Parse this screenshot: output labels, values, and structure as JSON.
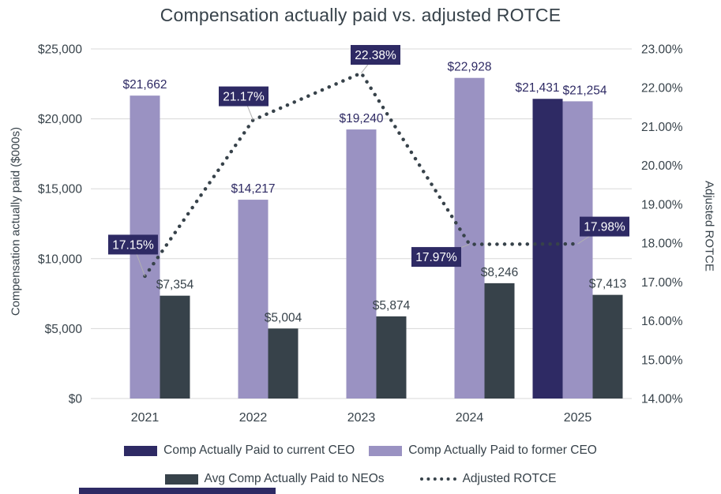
{
  "title": "Compensation actually paid vs. adjusted ROTCE",
  "colors": {
    "current_ceo": "#2e2a64",
    "former_ceo": "#9a92c2",
    "neos": "#37424a",
    "rotce_line": "#37424a",
    "label_box_bg": "#2e2a64",
    "label_box_text": "#ffffff",
    "grid": "#d8d8d8",
    "leader_line": "#b0b0b0",
    "axis_text": "#37424a",
    "title_text": "#37424a",
    "bottom_strip": "#2e2a64"
  },
  "chart_data": {
    "type": "bar",
    "subtype": "clustered bars with secondary-axis dotted line",
    "title": "Compensation actually paid vs. adjusted ROTCE",
    "categories": [
      "2021",
      "2022",
      "2023",
      "2024",
      "2025"
    ],
    "series": [
      {
        "name": "Comp Actually Paid to current CEO",
        "type": "bar",
        "axis": "left",
        "color_key": "current_ceo",
        "values": [
          null,
          null,
          null,
          null,
          21431
        ],
        "labels": [
          "",
          "",
          "",
          "",
          "$21,431"
        ]
      },
      {
        "name": "Comp Actually Paid to former CEO",
        "type": "bar",
        "axis": "left",
        "color_key": "former_ceo",
        "values": [
          21662,
          14217,
          19240,
          22928,
          21254
        ],
        "labels": [
          "$21,662",
          "$14,217",
          "$19,240",
          "$22,928",
          "$21,254"
        ]
      },
      {
        "name": "Avg Comp Actually Paid to NEOs",
        "type": "bar",
        "axis": "left",
        "color_key": "neos",
        "values": [
          7354,
          5004,
          5874,
          8246,
          7413
        ],
        "labels": [
          "$7,354",
          "$5,004",
          "$5,874",
          "$8,246",
          "$7,413"
        ]
      },
      {
        "name": "Adjusted ROTCE",
        "type": "line",
        "style": "dotted",
        "axis": "right",
        "color_key": "rotce_line",
        "values": [
          17.15,
          21.17,
          22.38,
          17.97,
          17.98
        ],
        "labels": [
          "17.15%",
          "21.17%",
          "22.38%",
          "17.97%",
          "17.98%"
        ],
        "label_placements": [
          "left",
          "above-left",
          "above-right",
          "below-left",
          "right"
        ]
      }
    ],
    "left_axis": {
      "label": "Compensation actually paid ($000s)",
      "min": 0,
      "max": 25000,
      "step": 5000,
      "tick_labels": [
        "$0",
        "$5,000",
        "$10,000",
        "$15,000",
        "$20,000",
        "$25,000"
      ]
    },
    "right_axis": {
      "label": "Adjusted ROTCE",
      "min": 14,
      "max": 23,
      "step": 1,
      "tick_labels": [
        "14.00%",
        "15.00%",
        "16.00%",
        "17.00%",
        "18.00%",
        "19.00%",
        "20.00%",
        "21.00%",
        "22.00%",
        "23.00%"
      ]
    },
    "grid": true,
    "legend_position": "bottom"
  },
  "legend": {
    "rows": [
      [
        {
          "label": "Comp Actually Paid to current CEO",
          "swatch": "solid",
          "color_key": "current_ceo"
        },
        {
          "label": "Comp Actually Paid to former CEO",
          "swatch": "solid",
          "color_key": "former_ceo"
        }
      ],
      [
        {
          "label": "Avg Comp Actually Paid to NEOs",
          "swatch": "solid",
          "color_key": "neos"
        },
        {
          "label": "Adjusted ROTCE",
          "swatch": "dotted-line",
          "color_key": "rotce_line"
        }
      ]
    ]
  }
}
